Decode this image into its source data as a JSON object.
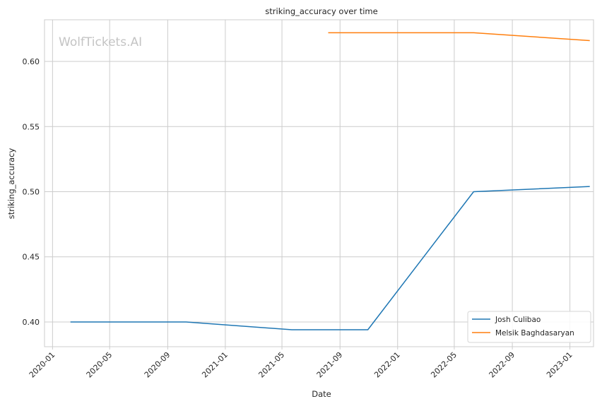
{
  "watermark": "WolfTickets.AI",
  "chart_data": {
    "type": "line",
    "title": "striking_accuracy over time",
    "xlabel": "Date",
    "ylabel": "striking_accuracy",
    "x_ticks": [
      "2020-01",
      "2020-05",
      "2020-09",
      "2021-01",
      "2021-05",
      "2021-09",
      "2022-01",
      "2022-05",
      "2022-09",
      "2023-01"
    ],
    "y_ticks": [
      0.4,
      0.45,
      0.5,
      0.55,
      0.6
    ],
    "xlim": [
      "2019-12-15",
      "2023-02-20"
    ],
    "ylim": [
      0.381,
      0.632
    ],
    "grid": true,
    "legend_position": "lower right",
    "series": [
      {
        "name": "Josh Culibao",
        "color": "#1f77b4",
        "points": [
          {
            "x": "2020-02-08",
            "y": 0.4
          },
          {
            "x": "2020-10-10",
            "y": 0.4
          },
          {
            "x": "2021-05-22",
            "y": 0.394
          },
          {
            "x": "2021-10-30",
            "y": 0.394
          },
          {
            "x": "2022-06-11",
            "y": 0.5
          },
          {
            "x": "2023-02-12",
            "y": 0.504
          }
        ]
      },
      {
        "name": "Melsik Baghdasaryan",
        "color": "#ff7f0e",
        "points": [
          {
            "x": "2021-08-07",
            "y": 0.622
          },
          {
            "x": "2022-06-11",
            "y": 0.622
          },
          {
            "x": "2023-02-12",
            "y": 0.616
          }
        ]
      }
    ]
  }
}
